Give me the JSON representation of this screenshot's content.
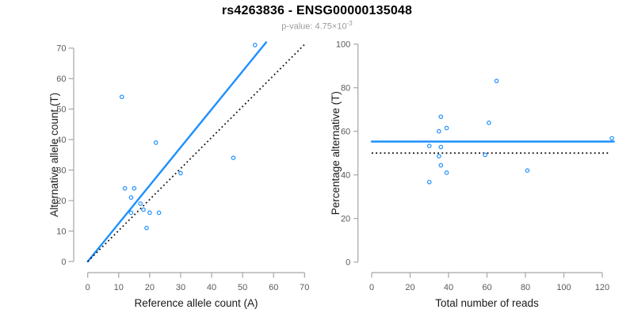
{
  "header": {
    "title": "rs4263836 - ENSG00000135048",
    "pvalue_main": "p-value: 4.75×10",
    "pvalue_exponent": "-3"
  },
  "colors": {
    "accent": "#1E90FF",
    "dotted_line": "#111111",
    "axis": "#A6A6A6",
    "tick_label": "#5A5A5A",
    "axis_title": "#1A1A1A"
  },
  "chart_data": [
    {
      "type": "scatter",
      "title": "rs4263836 - ENSG00000135048",
      "subtitle": "p-value: 4.75×10^-3",
      "xlabel": "Reference allele count (A)",
      "ylabel": "Alternative allele count (T)",
      "xlim": [
        0,
        70
      ],
      "ylim": [
        0,
        70
      ],
      "xticks": [
        0,
        10,
        20,
        30,
        40,
        50,
        60,
        70
      ],
      "yticks": [
        0,
        10,
        20,
        30,
        40,
        50,
        60,
        70
      ],
      "grid": false,
      "legend": "none",
      "points": [
        [
          11,
          54
        ],
        [
          12,
          24
        ],
        [
          15,
          24
        ],
        [
          14,
          21
        ],
        [
          14,
          16
        ],
        [
          17,
          19
        ],
        [
          18,
          17
        ],
        [
          20,
          16
        ],
        [
          23,
          16
        ],
        [
          19,
          11
        ],
        [
          22,
          39
        ],
        [
          30,
          29
        ],
        [
          47,
          34
        ],
        [
          54,
          71
        ]
      ],
      "lines": [
        {
          "name": "fit-line",
          "style": "solid",
          "color": "#1E90FF",
          "x1": 0,
          "y1": 0,
          "x2": 57.6,
          "y2": 71.9
        },
        {
          "name": "identity-line",
          "style": "dotted",
          "color": "#111111",
          "x1": 0,
          "y1": 0,
          "x2": 70.4,
          "y2": 71.6
        }
      ]
    },
    {
      "type": "scatter",
      "xlabel": "Total number of reads",
      "ylabel": "Percentage alternative (T)",
      "xlim": [
        0,
        127
      ],
      "ylim": [
        0,
        100
      ],
      "xticks": [
        0,
        20,
        40,
        60,
        80,
        100,
        120
      ],
      "yticks": [
        0,
        20,
        40,
        60,
        80,
        100
      ],
      "grid": false,
      "legend": "none",
      "points": [
        [
          65,
          83.1
        ],
        [
          61,
          63.9
        ],
        [
          81,
          42.0
        ],
        [
          125,
          56.8
        ],
        [
          59,
          49.2
        ],
        [
          36,
          66.7
        ],
        [
          39,
          61.5
        ],
        [
          35,
          60.0
        ],
        [
          30,
          53.3
        ],
        [
          36,
          52.8
        ],
        [
          35,
          48.6
        ],
        [
          36,
          44.4
        ],
        [
          39,
          41.0
        ],
        [
          30,
          36.7
        ]
      ],
      "lines": [
        {
          "name": "mean-percentage-line",
          "style": "solid",
          "color": "#1E90FF",
          "x1": 0,
          "y1": 55.3,
          "x2": 126,
          "y2": 55.3
        },
        {
          "name": "expected-50-line",
          "style": "dotted",
          "color": "#111111",
          "x1": 0,
          "y1": 50,
          "x2": 123.5,
          "y2": 50
        }
      ]
    }
  ]
}
